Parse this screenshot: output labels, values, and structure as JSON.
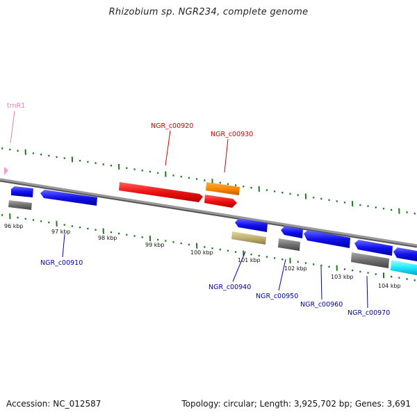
{
  "title": "Rhizobium sp. NGR234, complete genome",
  "footer": {
    "accession": "Accession: NC_012587",
    "info": "Topology: circular; Length: 3,925,702 bp; Genes: 3,691"
  },
  "colors": {
    "backbone": "#808080",
    "tick": "#1a7a1a",
    "label_top": "#cc0000",
    "label_bottom": "#0000aa",
    "label_trna": "#e080b0"
  },
  "kbp_labels": [
    "96 kbp",
    "97 kbp",
    "98 kbp",
    "99 kbp",
    "100 kbp",
    "101 kbp",
    "102 kbp",
    "103 kbp",
    "104 kbp"
  ],
  "gene_labels": [
    {
      "text": "trnR1",
      "side": "trna"
    },
    {
      "text": "NGR_c00920",
      "side": "top"
    },
    {
      "text": "NGR_c00930",
      "side": "top"
    },
    {
      "text": "NGR_c00910",
      "side": "bottom"
    },
    {
      "text": "NGR_c00940",
      "side": "bottom"
    },
    {
      "text": "NGR_c00950",
      "side": "bottom"
    },
    {
      "text": "NGR_c00960",
      "side": "bottom"
    },
    {
      "text": "NGR_c00970",
      "side": "bottom"
    }
  ]
}
